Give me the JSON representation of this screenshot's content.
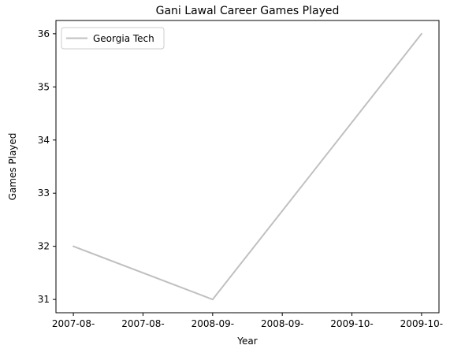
{
  "chart_data": {
    "type": "line",
    "title": "Gani Lawal Career Games Played",
    "xlabel": "Year",
    "ylabel": "Games Played",
    "x_tick_labels": [
      "2007-08-",
      "2007-08-",
      "2008-09-",
      "2008-09-",
      "2009-10-",
      "2009-10-"
    ],
    "x_tick_positions": [
      0,
      0.5,
      1,
      1.5,
      2,
      2.5
    ],
    "xlim": [
      -0.125,
      2.625
    ],
    "ylim": [
      30.75,
      36.25
    ],
    "y_ticks": [
      31,
      32,
      33,
      34,
      35,
      36
    ],
    "legend_position": "top-left",
    "grid": false,
    "series": [
      {
        "name": "Georgia Tech",
        "color": "#c0c0c0",
        "x": [
          0,
          1,
          2.5
        ],
        "values": [
          32,
          31,
          36
        ]
      }
    ]
  }
}
